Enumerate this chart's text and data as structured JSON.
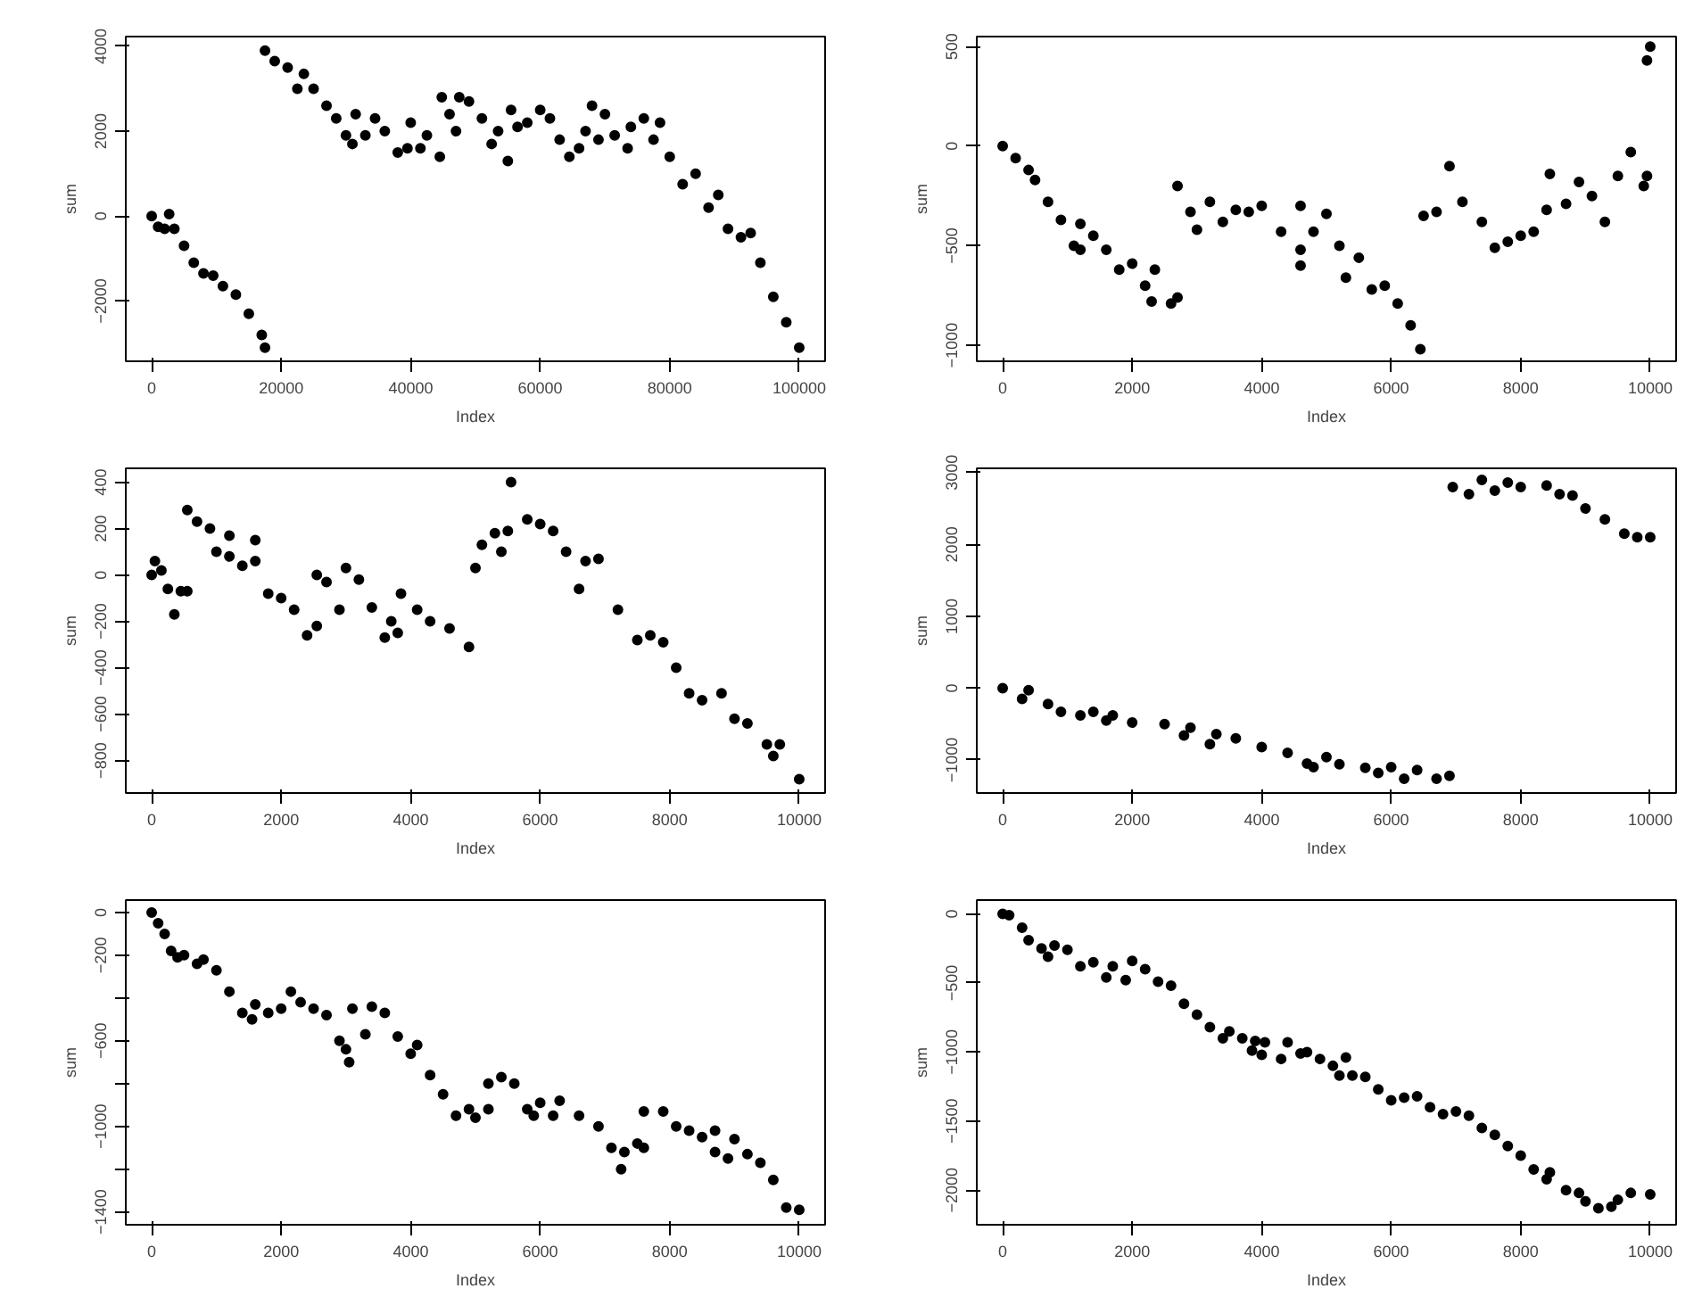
{
  "chart_data": [
    {
      "type": "scatter",
      "xlabel": "Index",
      "ylabel": "sum",
      "marker": "circle",
      "grid": false,
      "xlim": [
        -4000,
        104000
      ],
      "ylim": [
        -3420,
        4230
      ],
      "xticks": [
        0,
        20000,
        40000,
        60000,
        80000,
        100000
      ],
      "yticks": [
        -2000,
        0,
        2000,
        4000
      ],
      "x": [
        0,
        1000,
        2000,
        2700,
        3500,
        5000,
        6500,
        8000,
        9500,
        11000,
        13000,
        15000,
        17000,
        17500,
        17500,
        19000,
        21000,
        22500,
        23500,
        25000,
        27000,
        28500,
        30000,
        31000,
        31500,
        33000,
        34500,
        36000,
        38000,
        39500,
        40000,
        41500,
        42500,
        44500,
        44800,
        46000,
        47000,
        47500,
        49000,
        51000,
        52500,
        53500,
        55000,
        55500,
        56500,
        58000,
        60000,
        61500,
        63000,
        64500,
        66000,
        67000,
        68000,
        69000,
        70000,
        71500,
        73500,
        74000,
        76000,
        77500,
        78500,
        80000,
        82000,
        84000,
        86000,
        87500,
        89000,
        91000,
        92500,
        94000,
        96000,
        98000,
        100000
      ],
      "series": [
        {
          "color": "#000000",
          "values": [
            0,
            -250,
            -300,
            50,
            -300,
            -700,
            -1100,
            -1350,
            -1400,
            -1650,
            -1850,
            -2300,
            -2800,
            -3100,
            3900,
            3650,
            3500,
            3000,
            3350,
            3000,
            2600,
            2300,
            1900,
            1700,
            2400,
            1900,
            2300,
            2000,
            1500,
            1600,
            2200,
            1600,
            1900,
            1400,
            2800,
            2400,
            2000,
            2800,
            2700,
            2300,
            1700,
            2000,
            1300,
            2500,
            2100,
            2200,
            2500,
            2300,
            1800,
            1400,
            1600,
            2000,
            2600,
            1800,
            2400,
            1900,
            1600,
            2100,
            2300,
            1800,
            2200,
            1400,
            750,
            1000,
            200,
            500,
            -300,
            -500,
            -400,
            -1100,
            -1900,
            -2500,
            -3100
          ]
        }
      ]
    },
    {
      "type": "scatter",
      "xlabel": "Index",
      "ylabel": "sum",
      "marker": "circle",
      "grid": false,
      "xlim": [
        -400,
        10400
      ],
      "ylim": [
        -1080,
        550
      ],
      "xticks": [
        0,
        2000,
        4000,
        6000,
        8000,
        10000
      ],
      "yticks": [
        -1000,
        -500,
        0,
        500
      ],
      "x": [
        0,
        200,
        400,
        500,
        700,
        900,
        1100,
        1200,
        1200,
        1400,
        1600,
        1800,
        2000,
        2200,
        2300,
        2350,
        2600,
        2700,
        2700,
        2900,
        3000,
        3200,
        3400,
        3600,
        3800,
        4000,
        4300,
        4600,
        4600,
        4600,
        4800,
        5000,
        5200,
        5300,
        5500,
        5700,
        5900,
        6100,
        6300,
        6450,
        6500,
        6700,
        6900,
        7100,
        7400,
        7600,
        7800,
        8000,
        8200,
        8400,
        8450,
        8700,
        8900,
        9100,
        9300,
        9500,
        9700,
        9900,
        9950,
        9950,
        10000
      ],
      "series": [
        {
          "color": "#000000",
          "values": [
            0,
            -60,
            -120,
            -170,
            -280,
            -370,
            -500,
            -520,
            -390,
            -450,
            -520,
            -620,
            -590,
            -700,
            -780,
            -620,
            -790,
            -760,
            -200,
            -330,
            -420,
            -280,
            -380,
            -320,
            -330,
            -300,
            -430,
            -600,
            -520,
            -300,
            -430,
            -340,
            -500,
            -660,
            -560,
            -720,
            -700,
            -790,
            -900,
            -1020,
            -350,
            -330,
            -100,
            -280,
            -380,
            -510,
            -480,
            -450,
            -430,
            -320,
            -140,
            -290,
            -180,
            -250,
            -380,
            -150,
            -30,
            -200,
            -150,
            430,
            500
          ]
        }
      ]
    },
    {
      "type": "scatter",
      "xlabel": "Index",
      "ylabel": "sum",
      "marker": "circle",
      "grid": false,
      "xlim": [
        -400,
        10400
      ],
      "ylim": [
        -940,
        460
      ],
      "xticks": [
        0,
        2000,
        4000,
        6000,
        8000,
        10000
      ],
      "yticks": [
        -800,
        -600,
        -400,
        -200,
        0,
        200,
        400
      ],
      "x": [
        0,
        50,
        150,
        250,
        350,
        450,
        550,
        550,
        700,
        900,
        1000,
        1200,
        1200,
        1400,
        1600,
        1600,
        1800,
        2000,
        2200,
        2400,
        2550,
        2550,
        2700,
        2900,
        3000,
        3200,
        3400,
        3600,
        3700,
        3800,
        3850,
        4100,
        4300,
        4600,
        4900,
        5000,
        5100,
        5300,
        5400,
        5500,
        5550,
        5800,
        6000,
        6200,
        6400,
        6600,
        6700,
        6900,
        7200,
        7500,
        7700,
        7900,
        8100,
        8300,
        8500,
        8800,
        9000,
        9200,
        9500,
        9600,
        9700,
        10000
      ],
      "series": [
        {
          "color": "#000000",
          "values": [
            0,
            60,
            20,
            -60,
            -170,
            -70,
            -70,
            280,
            230,
            200,
            100,
            80,
            170,
            40,
            60,
            150,
            -80,
            -100,
            -150,
            -260,
            -220,
            0,
            -30,
            -150,
            30,
            -20,
            -140,
            -270,
            -200,
            -250,
            -80,
            -150,
            -200,
            -230,
            -310,
            30,
            130,
            180,
            100,
            190,
            400,
            240,
            220,
            190,
            100,
            -60,
            60,
            70,
            -150,
            -280,
            -260,
            -290,
            -400,
            -510,
            -540,
            -510,
            -620,
            -640,
            -730,
            -780,
            -730,
            -880
          ]
        }
      ]
    },
    {
      "type": "scatter",
      "xlabel": "Index",
      "ylabel": "sum",
      "marker": "circle",
      "grid": false,
      "xlim": [
        -400,
        10400
      ],
      "ylim": [
        -1460,
        3060
      ],
      "xticks": [
        0,
        2000,
        4000,
        6000,
        8000,
        10000
      ],
      "yticks": [
        -1000,
        0,
        1000,
        2000,
        3000
      ],
      "x": [
        0,
        300,
        400,
        700,
        900,
        1200,
        1400,
        1600,
        1700,
        2000,
        2500,
        2800,
        2900,
        3200,
        3300,
        3600,
        4000,
        4400,
        4700,
        4800,
        5000,
        5200,
        5600,
        5800,
        6000,
        6200,
        6400,
        6700,
        6900,
        6950,
        7200,
        7400,
        7600,
        7800,
        8000,
        8400,
        8600,
        8800,
        9000,
        9300,
        9600,
        9800,
        10000
      ],
      "series": [
        {
          "color": "#000000",
          "values": [
            0,
            -150,
            -30,
            -220,
            -330,
            -380,
            -330,
            -450,
            -380,
            -480,
            -500,
            -660,
            -550,
            -780,
            -640,
            -700,
            -820,
            -900,
            -1050,
            -1100,
            -960,
            -1060,
            -1110,
            -1180,
            -1100,
            -1260,
            -1140,
            -1260,
            -1220,
            2800,
            2700,
            2900,
            2750,
            2860,
            2800,
            2820,
            2700,
            2680,
            2500,
            2350,
            2150,
            2100,
            2100
          ]
        }
      ]
    },
    {
      "type": "scatter",
      "xlabel": "Index",
      "ylabel": "sum",
      "marker": "circle",
      "grid": false,
      "xlim": [
        -400,
        10400
      ],
      "ylim": [
        -1460,
        58
      ],
      "xticks": [
        0,
        2000,
        4000,
        6000,
        8000,
        10000
      ],
      "yticks": [
        -1400,
        {
          "value": -1200,
          "label": null
        },
        -1000,
        {
          "value": -800,
          "label": null
        },
        -600,
        {
          "value": -400,
          "label": null
        },
        -200,
        0
      ],
      "x": [
        0,
        100,
        200,
        300,
        400,
        500,
        700,
        800,
        1000,
        1200,
        1400,
        1550,
        1600,
        1800,
        2000,
        2150,
        2300,
        2500,
        2700,
        2900,
        3000,
        3050,
        3100,
        3300,
        3400,
        3600,
        3800,
        4000,
        4100,
        4300,
        4500,
        4700,
        4900,
        5000,
        5200,
        5200,
        5400,
        5600,
        5800,
        5900,
        6000,
        6200,
        6300,
        6600,
        6900,
        7100,
        7250,
        7300,
        7500,
        7600,
        7600,
        7900,
        8100,
        8300,
        8500,
        8700,
        8700,
        8900,
        9000,
        9200,
        9400,
        9600,
        9800,
        10000
      ],
      "series": [
        {
          "color": "#000000",
          "values": [
            0,
            -50,
            -100,
            -180,
            -210,
            -200,
            -240,
            -220,
            -270,
            -370,
            -470,
            -500,
            -430,
            -470,
            -450,
            -370,
            -420,
            -450,
            -480,
            -600,
            -640,
            -700,
            -450,
            -570,
            -440,
            -470,
            -580,
            -660,
            -620,
            -760,
            -850,
            -950,
            -920,
            -960,
            -920,
            -800,
            -770,
            -800,
            -920,
            -950,
            -890,
            -950,
            -880,
            -950,
            -1000,
            -1100,
            -1200,
            -1120,
            -1080,
            -1100,
            -930,
            -930,
            -1000,
            -1020,
            -1050,
            -1120,
            -1020,
            -1150,
            -1060,
            -1130,
            -1170,
            -1250,
            -1380,
            -1390
          ]
        }
      ]
    },
    {
      "type": "scatter",
      "xlabel": "Index",
      "ylabel": "sum",
      "marker": "circle",
      "grid": false,
      "xlim": [
        -400,
        10400
      ],
      "ylim": [
        -2250,
        100
      ],
      "xticks": [
        0,
        2000,
        4000,
        6000,
        8000,
        10000
      ],
      "yticks": [
        -2000,
        -1500,
        -1000,
        -500,
        0
      ],
      "x": [
        0,
        100,
        300,
        400,
        600,
        700,
        800,
        1000,
        1200,
        1400,
        1600,
        1700,
        1900,
        2000,
        2200,
        2400,
        2600,
        2800,
        3000,
        3200,
        3400,
        3500,
        3700,
        3850,
        3900,
        4000,
        4050,
        4300,
        4400,
        4600,
        4700,
        4900,
        5100,
        5200,
        5300,
        5400,
        5600,
        5800,
        6000,
        6200,
        6400,
        6600,
        6800,
        7000,
        7200,
        7400,
        7600,
        7800,
        8000,
        8200,
        8400,
        8450,
        8700,
        8900,
        9000,
        9200,
        9400,
        9500,
        9700,
        10000
      ],
      "series": [
        {
          "color": "#000000",
          "values": [
            0,
            -10,
            -100,
            -190,
            -250,
            -310,
            -230,
            -260,
            -380,
            -350,
            -460,
            -380,
            -480,
            -340,
            -400,
            -490,
            -520,
            -650,
            -730,
            -820,
            -900,
            -850,
            -900,
            -990,
            -920,
            -1020,
            -930,
            -1050,
            -930,
            -1010,
            -1000,
            -1050,
            -1100,
            -1170,
            -1040,
            -1170,
            -1180,
            -1270,
            -1350,
            -1330,
            -1320,
            -1400,
            -1450,
            -1430,
            -1460,
            -1550,
            -1600,
            -1680,
            -1750,
            -1850,
            -1920,
            -1870,
            -2000,
            -2020,
            -2080,
            -2130,
            -2120,
            -2070,
            -2020,
            -2030
          ]
        }
      ]
    }
  ]
}
